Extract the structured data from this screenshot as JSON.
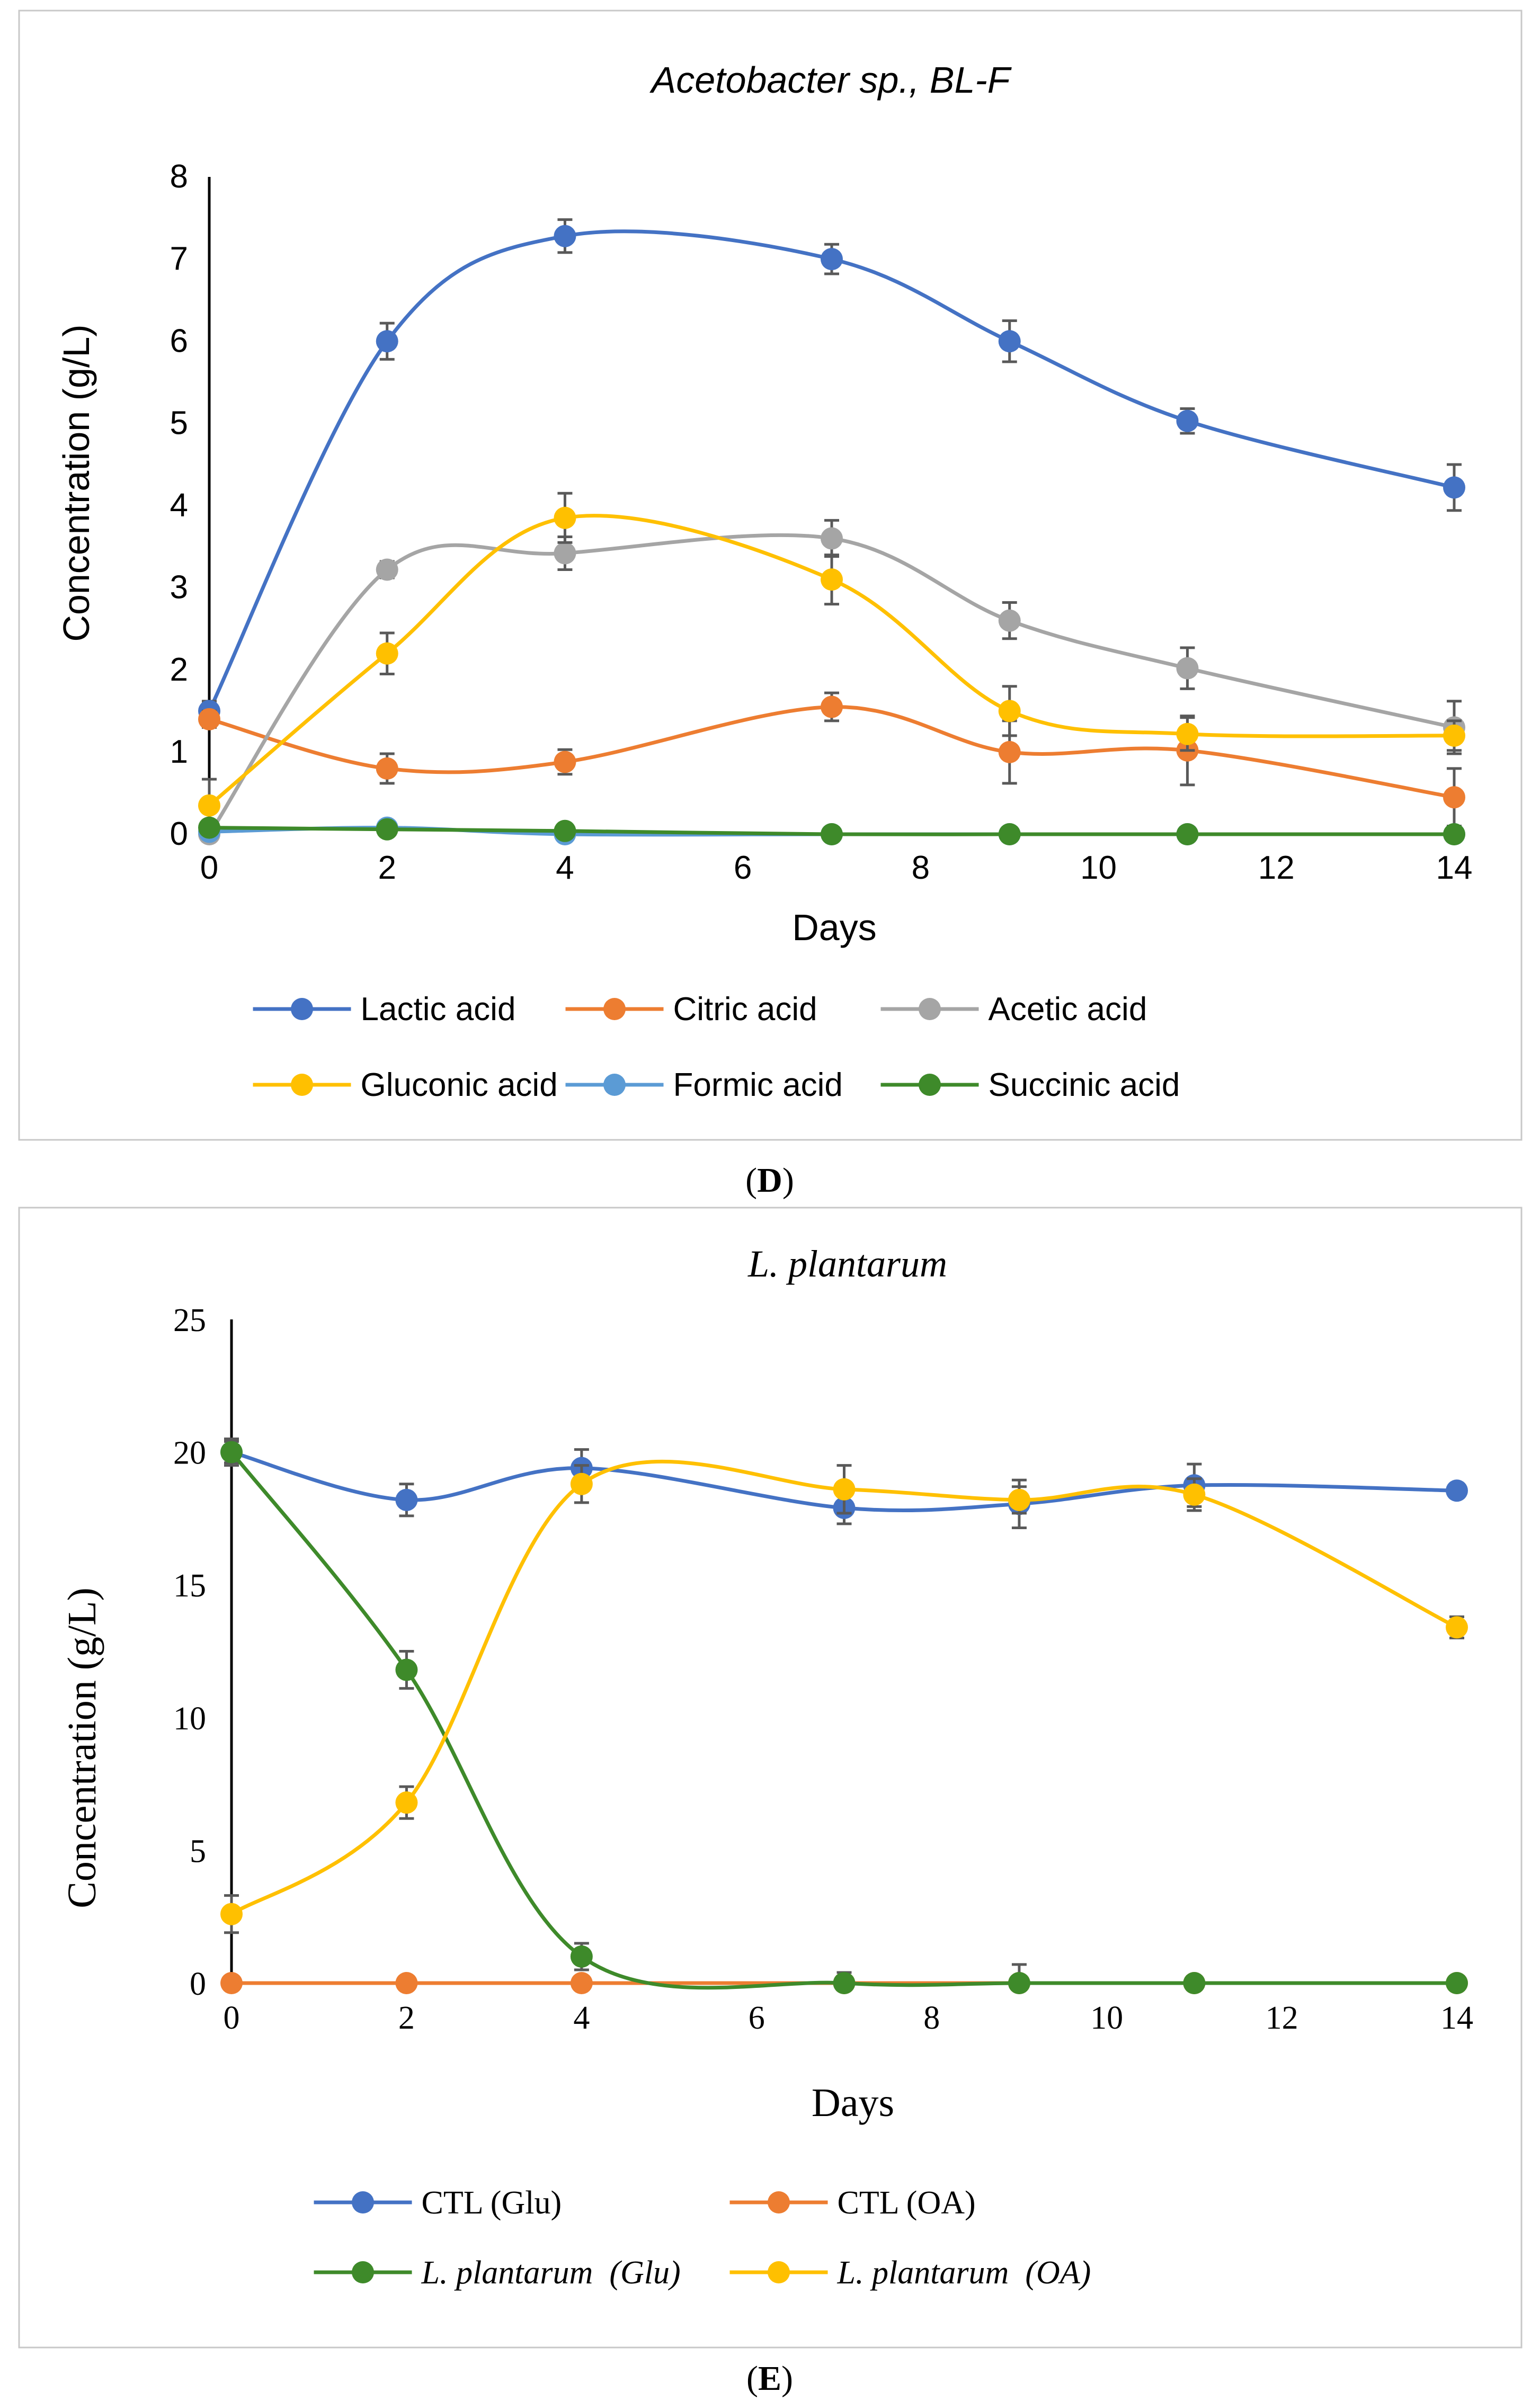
{
  "chart_data": [
    {
      "type": "line",
      "title": "Acetobacter sp., BL-F",
      "xlabel": "Days",
      "ylabel": "Concentration (g/L)",
      "panel_label": "D",
      "x": [
        0,
        2,
        4,
        7,
        9,
        11,
        14
      ],
      "xlim": [
        0,
        14
      ],
      "xticks": [
        0,
        2,
        4,
        6,
        8,
        10,
        12,
        14
      ],
      "ylim": [
        0,
        8
      ],
      "yticks": [
        0,
        1,
        2,
        3,
        4,
        5,
        6,
        7,
        8
      ],
      "grid": false,
      "legend_position": "bottom",
      "series": [
        {
          "name": "Lactic acid",
          "color": "#4472C4",
          "values": [
            1.5,
            6.0,
            7.28,
            7.0,
            6.0,
            5.03,
            4.22
          ],
          "errors": [
            0.12,
            0.22,
            0.2,
            0.18,
            0.25,
            0.15,
            0.28
          ]
        },
        {
          "name": "Citric acid",
          "color": "#ED7D31",
          "values": [
            1.4,
            0.8,
            0.88,
            1.55,
            1.0,
            1.02,
            0.45
          ],
          "errors": [
            0.1,
            0.18,
            0.15,
            0.17,
            0.38,
            0.42,
            0.35
          ]
        },
        {
          "name": "Acetic acid",
          "color": "#A5A5A5",
          "values": [
            0.0,
            3.22,
            3.42,
            3.6,
            2.6,
            2.02,
            1.3
          ],
          "errors": [
            0.05,
            0.1,
            0.2,
            0.22,
            0.22,
            0.25,
            0.32
          ]
        },
        {
          "name": "Gluconic acid",
          "color": "#FFC000",
          "values": [
            0.35,
            2.2,
            3.85,
            3.1,
            1.5,
            1.22,
            1.2
          ],
          "errors": [
            0.32,
            0.25,
            0.3,
            0.3,
            0.3,
            0.2,
            0.18
          ]
        },
        {
          "name": "Formic acid",
          "color": "#5B9BD5",
          "values": [
            0.03,
            0.08,
            0.0,
            0.0,
            0.0,
            0.0,
            0.0
          ],
          "errors": [
            0,
            0,
            0,
            0,
            0,
            0,
            0
          ]
        },
        {
          "name": "Succinic acid",
          "color": "#3E8A2A",
          "values": [
            0.08,
            0.06,
            0.04,
            0.0,
            0.0,
            0.0,
            0.0
          ],
          "errors": [
            0,
            0,
            0,
            0,
            0,
            0,
            0
          ]
        }
      ]
    },
    {
      "type": "line",
      "title": "L. plantarum",
      "xlabel": "Days",
      "ylabel": "Concentration (g/L)",
      "panel_label": "E",
      "x": [
        0,
        2,
        4,
        7,
        9,
        11,
        14
      ],
      "xlim": [
        0,
        14
      ],
      "xticks": [
        0,
        2,
        4,
        6,
        8,
        10,
        12,
        14
      ],
      "ylim": [
        0,
        25
      ],
      "yticks": [
        0,
        5,
        10,
        15,
        20,
        25
      ],
      "grid": false,
      "legend_position": "bottom",
      "series": [
        {
          "name": "CTL (Glu)",
          "color": "#4472C4",
          "values": [
            20.0,
            18.2,
            19.4,
            17.9,
            18.05,
            18.75,
            18.55
          ],
          "errors": [
            0.4,
            0.6,
            0.7,
            0.6,
            0.9,
            0.8,
            0.0
          ]
        },
        {
          "name": "CTL (OA)",
          "color": "#ED7D31",
          "values": [
            0.0,
            0.0,
            0.0,
            0.0,
            0.0,
            0.0,
            0.0
          ],
          "errors": [
            0,
            0,
            0,
            0,
            0,
            0,
            0
          ]
        },
        {
          "name": "L. plantarum  (Glu)",
          "color": "#3E8A2A",
          "values": [
            20.0,
            11.8,
            1.0,
            0.0,
            0.0,
            0.0,
            0.0
          ],
          "errors": [
            0.5,
            0.7,
            0.5,
            0.4,
            0.7,
            0.0,
            0.0
          ]
        },
        {
          "name": "L. plantarum  (OA)",
          "color": "#FFC000",
          "values": [
            2.6,
            6.8,
            18.8,
            18.6,
            18.2,
            18.4,
            13.4
          ],
          "errors": [
            0.7,
            0.6,
            0.7,
            0.9,
            0.5,
            0.6,
            0.4
          ]
        }
      ]
    }
  ]
}
